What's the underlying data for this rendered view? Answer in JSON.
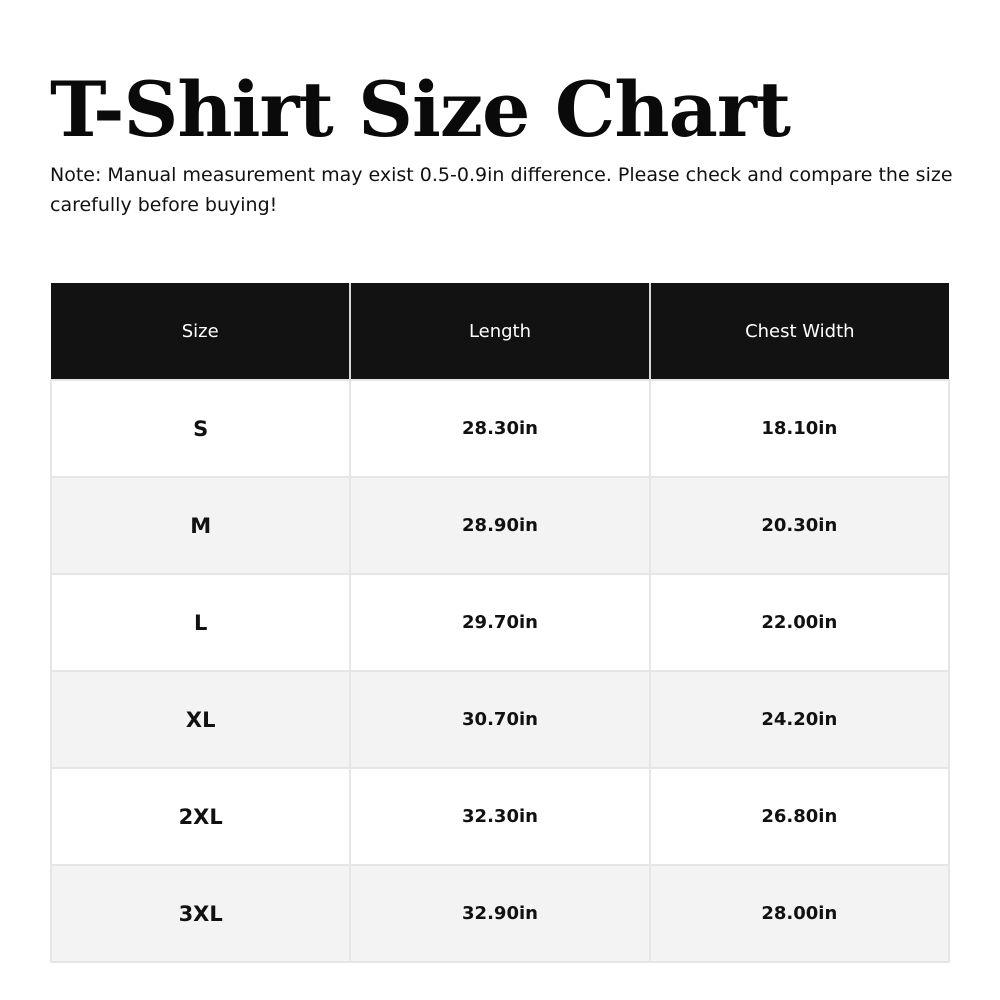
{
  "title": "T-Shirt Size Chart",
  "note": "Note: Manual measurement may exist 0.5-0.9in difference. Please check and compare the size carefully before buying!",
  "table": {
    "headers": [
      "Size",
      "Length",
      "Chest Width"
    ],
    "rows": [
      [
        "S",
        "28.30in",
        "18.10in"
      ],
      [
        "M",
        "28.90in",
        "20.30in"
      ],
      [
        "L",
        "29.70in",
        "22.00in"
      ],
      [
        "XL",
        "30.70in",
        "24.20in"
      ],
      [
        "2XL",
        "32.30in",
        "26.80in"
      ],
      [
        "3XL",
        "32.90in",
        "28.00in"
      ]
    ]
  },
  "colors": {
    "header_bg": "#121212",
    "alt_row_bg": "#f3f3f3"
  }
}
